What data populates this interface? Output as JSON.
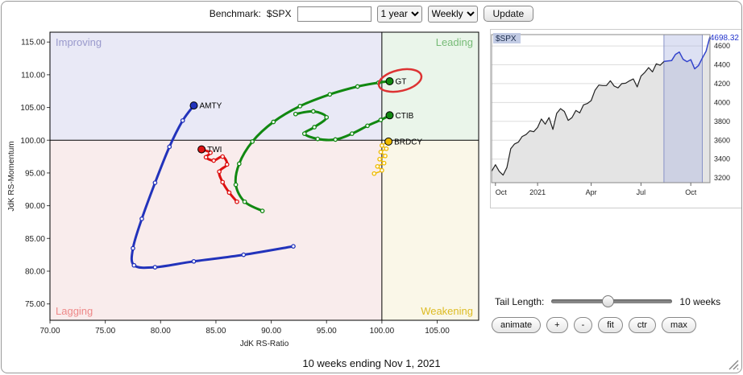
{
  "toolbar": {
    "benchmark_label": "Benchmark:",
    "benchmark_value": "$SPX",
    "benchmark_input_value": "",
    "period_value": "1 year",
    "interval_value": "Weekly",
    "update_label": "Update"
  },
  "rrg": {
    "quadrant_labels": {
      "improving": "Improving",
      "leading": "Leading",
      "lagging": "Lagging",
      "weakening": "Weakening"
    },
    "colors": {
      "improving_bg": "#e9e9f6",
      "leading_bg": "#eaf5ea",
      "lagging_bg": "#f9ecec",
      "weakening_bg": "#faf7e8",
      "improving_text": "#9999cc",
      "leading_text": "#77bb77",
      "lagging_text": "#ee8888",
      "weakening_text": "#ddbb22",
      "annotation": "#dd3333"
    }
  },
  "chart_data": [
    {
      "type": "scatter",
      "title": "Relative Rotation Graph",
      "xlabel": "JdK RS-Ratio",
      "ylabel": "JdK RS-Momentum",
      "xlim": [
        70,
        108.75
      ],
      "ylim": [
        72.5,
        116.5
      ],
      "x_ticks": [
        70,
        75,
        80,
        85,
        90,
        95,
        100,
        105
      ],
      "y_ticks": [
        75,
        80,
        85,
        90,
        95,
        100,
        105,
        110,
        115
      ],
      "center": [
        100,
        100
      ],
      "series": [
        {
          "name": "AMTY",
          "color": "#2233bb",
          "width": 3,
          "points": [
            [
              92.0,
              83.8
            ],
            [
              87.5,
              82.5
            ],
            [
              83.0,
              81.5
            ],
            [
              79.5,
              80.6
            ],
            [
              77.6,
              80.9
            ],
            [
              77.5,
              83.5
            ],
            [
              78.3,
              88.0
            ],
            [
              79.5,
              93.5
            ],
            [
              80.8,
              99.0
            ],
            [
              82.0,
              103.0
            ],
            [
              83.0,
              105.3
            ]
          ]
        },
        {
          "name": "TWI",
          "color": "#dd1111",
          "width": 3,
          "points": [
            [
              86.9,
              90.6
            ],
            [
              86.2,
              92.0
            ],
            [
              85.6,
              93.6
            ],
            [
              85.3,
              95.2
            ],
            [
              86.0,
              96.3
            ],
            [
              85.6,
              97.5
            ],
            [
              84.8,
              96.9
            ],
            [
              84.1,
              97.4
            ],
            [
              84.5,
              98.1
            ],
            [
              83.7,
              98.6
            ]
          ]
        },
        {
          "name": "GT",
          "color": "#118811",
          "width": 3,
          "annotated": true,
          "points": [
            [
              89.2,
              89.2
            ],
            [
              87.6,
              90.6
            ],
            [
              86.8,
              93.2
            ],
            [
              87.1,
              96.4
            ],
            [
              88.3,
              99.8
            ],
            [
              90.2,
              102.8
            ],
            [
              92.6,
              105.2
            ],
            [
              95.3,
              107.0
            ],
            [
              97.8,
              108.2
            ],
            [
              99.7,
              108.8
            ],
            [
              100.7,
              109.0
            ]
          ]
        },
        {
          "name": "CTIB",
          "color": "#118811",
          "width": 3,
          "points": [
            [
              92.2,
              104.0
            ],
            [
              93.8,
              104.4
            ],
            [
              95.0,
              103.5
            ],
            [
              93.9,
              102.0
            ],
            [
              93.0,
              101.0
            ],
            [
              94.2,
              100.2
            ],
            [
              95.8,
              100.1
            ],
            [
              97.3,
              101.0
            ],
            [
              98.7,
              102.2
            ],
            [
              99.9,
              103.1
            ],
            [
              100.7,
              103.8
            ]
          ]
        },
        {
          "name": "BRDCY",
          "color": "#eebb00",
          "width": 1.5,
          "points": [
            [
              99.3,
              94.9
            ],
            [
              100.0,
              95.4
            ],
            [
              99.6,
              96.0
            ],
            [
              100.2,
              96.5
            ],
            [
              99.8,
              97.1
            ],
            [
              100.3,
              97.6
            ],
            [
              99.9,
              98.2
            ],
            [
              100.4,
              98.7
            ],
            [
              100.0,
              99.2
            ],
            [
              100.6,
              99.8
            ]
          ]
        }
      ]
    },
    {
      "type": "area",
      "title": "$SPX",
      "last_value": "4698.32",
      "ylim": [
        3150,
        4720
      ],
      "y_ticks": [
        3200,
        3400,
        3600,
        3800,
        4000,
        4200,
        4400,
        4600
      ],
      "x_tick_labels": [
        "Oct",
        "2021",
        "Apr",
        "Jul",
        "Oct"
      ],
      "x_tick_positions": [
        1,
        12,
        26,
        39,
        52
      ],
      "highlight_start": 45,
      "highlight_end": 55,
      "values": [
        3270,
        3340,
        3270,
        3230,
        3310,
        3510,
        3560,
        3580,
        3640,
        3660,
        3700,
        3690,
        3735,
        3825,
        3770,
        3840,
        3715,
        3885,
        3935,
        3905,
        3810,
        3840,
        3915,
        3890,
        3975,
        3990,
        4020,
        4130,
        4185,
        4180,
        4180,
        4230,
        4175,
        4155,
        4200,
        4205,
        4230,
        4250,
        4165,
        4280,
        4320,
        4370,
        4325,
        4410,
        4395,
        4435,
        4440,
        4445,
        4510,
        4535,
        4458,
        4433,
        4455,
        4357,
        4391,
        4471,
        4544,
        4698
      ]
    }
  ],
  "controls": {
    "tail_length_label": "Tail Length:",
    "tail_length_value": "10 weeks",
    "buttons": [
      {
        "label": "animate"
      },
      {
        "label": "+"
      },
      {
        "label": "-"
      },
      {
        "label": "fit"
      },
      {
        "label": "ctr"
      },
      {
        "label": "max"
      }
    ]
  },
  "footer": {
    "text": "10 weeks ending Nov 1, 2021"
  }
}
